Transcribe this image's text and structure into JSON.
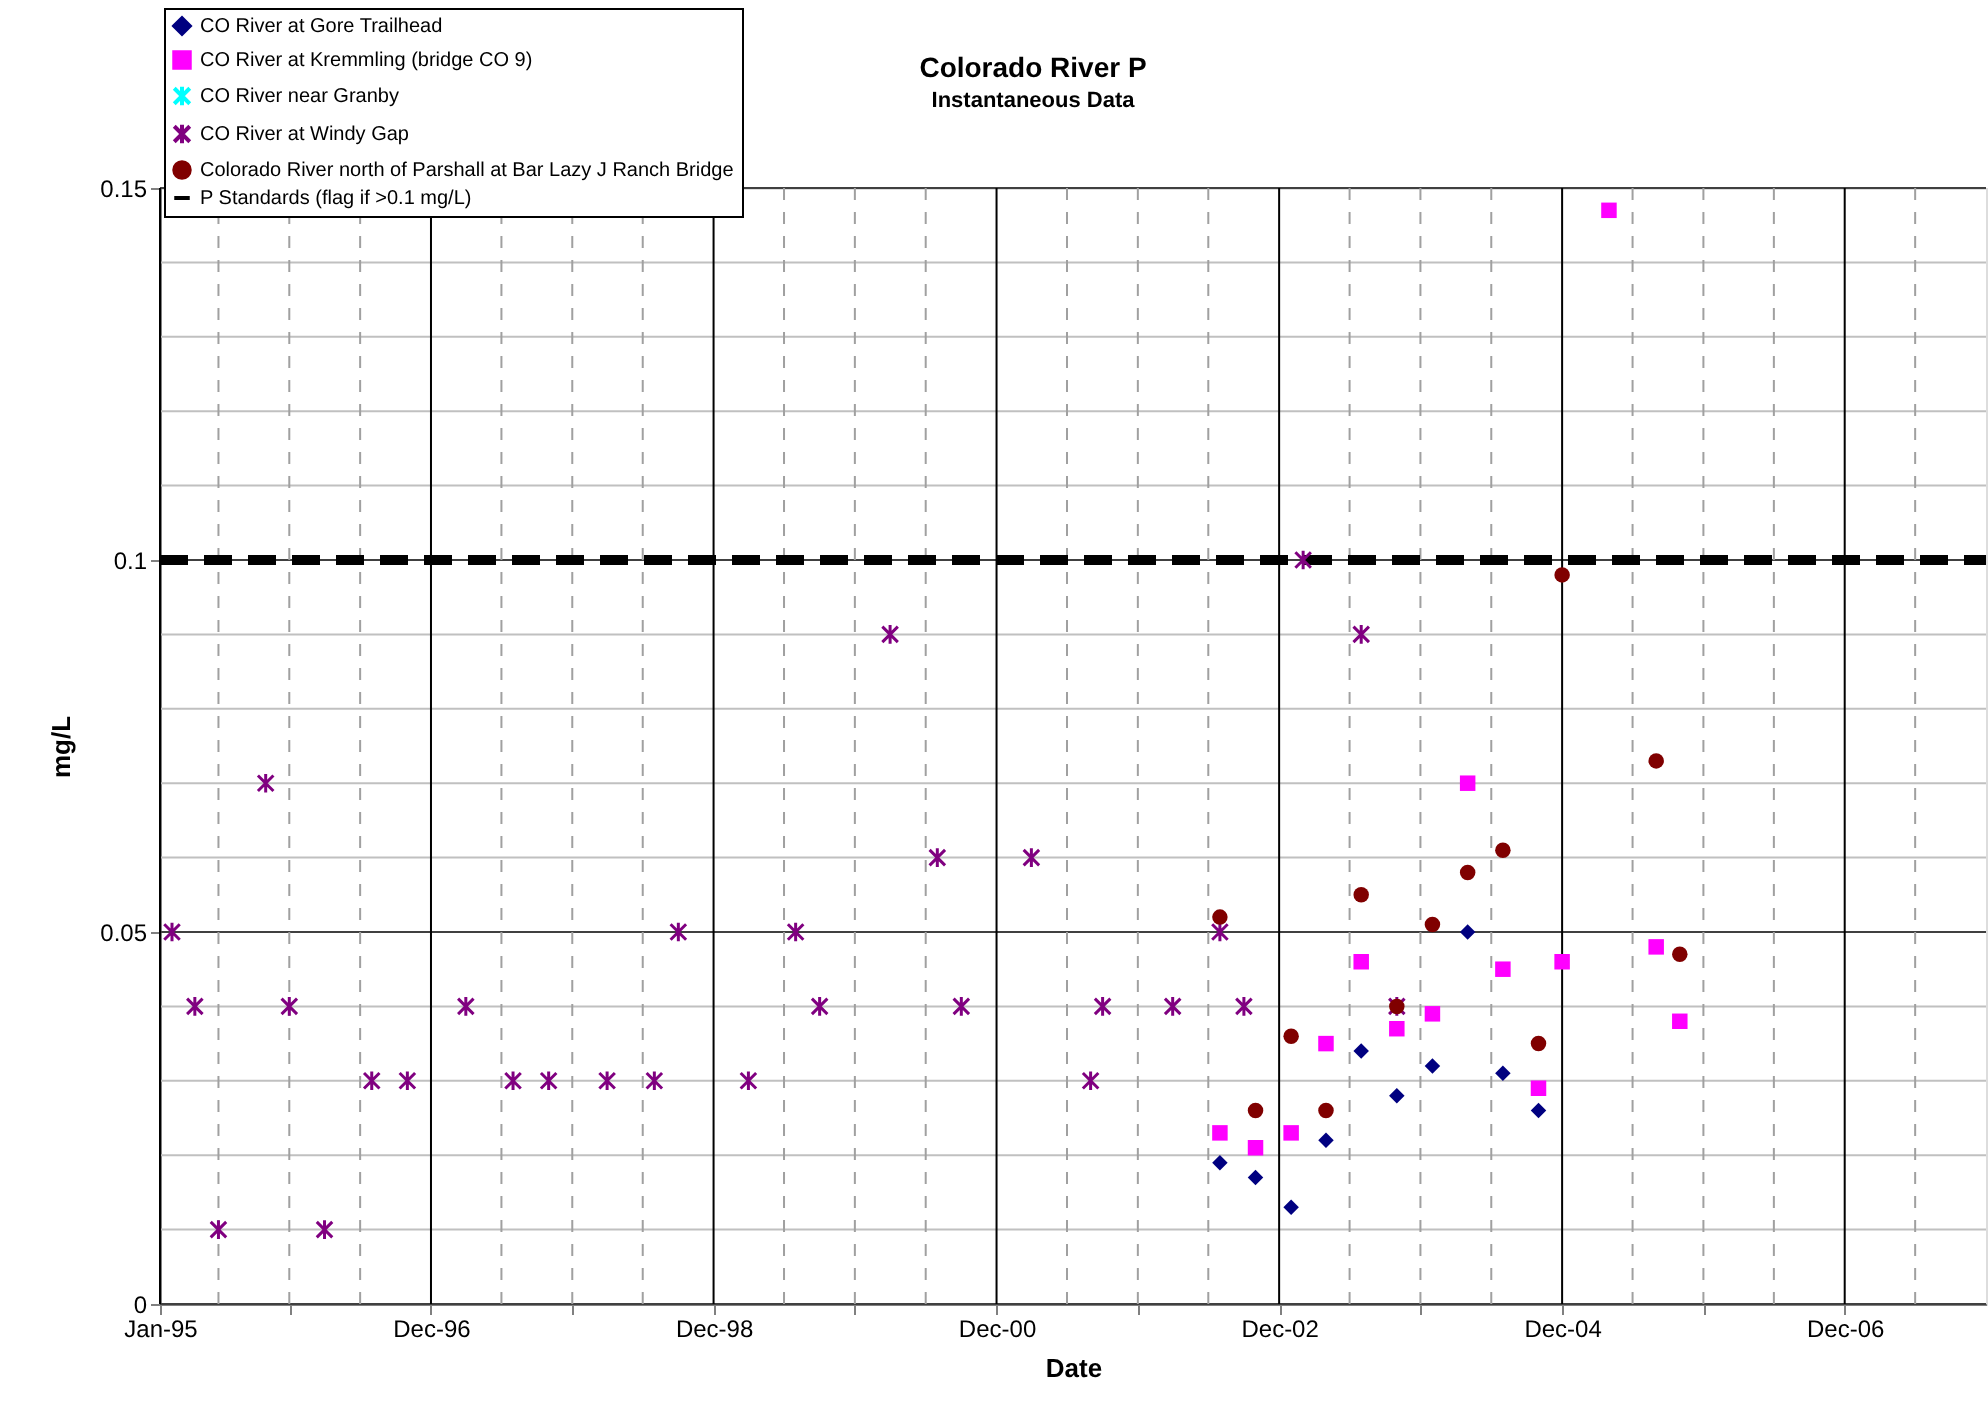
{
  "chart_data": {
    "type": "scatter",
    "title": "Colorado River P",
    "subtitle": "Instantaneous Data",
    "xlabel": "Date",
    "ylabel": "mg/L",
    "xlim": [
      "1995-01-01",
      "2007-12-01"
    ],
    "ylim": [
      0,
      0.15
    ],
    "xticks": [
      {
        "value": "1995-01-01",
        "label": "Jan-95"
      },
      {
        "value": "1995-06-01",
        "label": null
      },
      {
        "value": "1995-12-01",
        "label": null
      },
      {
        "value": "1996-06-01",
        "label": null
      },
      {
        "value": "1996-12-01",
        "label": "Dec-96"
      },
      {
        "value": "1997-06-01",
        "label": null
      },
      {
        "value": "1997-12-01",
        "label": null
      },
      {
        "value": "1998-06-01",
        "label": null
      },
      {
        "value": "1998-12-01",
        "label": "Dec-98"
      },
      {
        "value": "1999-06-01",
        "label": null
      },
      {
        "value": "1999-12-01",
        "label": null
      },
      {
        "value": "2000-06-01",
        "label": null
      },
      {
        "value": "2000-12-01",
        "label": "Dec-00"
      },
      {
        "value": "2001-06-01",
        "label": null
      },
      {
        "value": "2001-12-01",
        "label": null
      },
      {
        "value": "2002-06-01",
        "label": null
      },
      {
        "value": "2002-12-01",
        "label": "Dec-02"
      },
      {
        "value": "2003-06-01",
        "label": null
      },
      {
        "value": "2003-12-01",
        "label": null
      },
      {
        "value": "2004-06-01",
        "label": null
      },
      {
        "value": "2004-12-01",
        "label": "Dec-04"
      },
      {
        "value": "2005-06-01",
        "label": null
      },
      {
        "value": "2005-12-01",
        "label": null
      },
      {
        "value": "2006-06-01",
        "label": null
      },
      {
        "value": "2006-12-01",
        "label": "Dec-06"
      },
      {
        "value": "2007-06-01",
        "label": null
      }
    ],
    "yticks": [
      0,
      {
        "value": 0.01,
        "label": null
      },
      {
        "value": 0.02,
        "label": null
      },
      {
        "value": 0.03,
        "label": null
      },
      {
        "value": 0.04,
        "label": null
      },
      0.05,
      {
        "value": 0.06,
        "label": null
      },
      {
        "value": 0.07,
        "label": null
      },
      {
        "value": 0.08,
        "label": null
      },
      {
        "value": 0.09,
        "label": null
      },
      0.1,
      {
        "value": 0.11,
        "label": null
      },
      {
        "value": 0.12,
        "label": null
      },
      {
        "value": 0.13,
        "label": null
      },
      {
        "value": 0.14,
        "label": null
      },
      0.15
    ],
    "grid": true,
    "legend": "top left",
    "series": [
      {
        "name": "CO River at Gore Trailhead",
        "color": "#000080",
        "marker": "diamond",
        "x": [
          "2002-07",
          "2002-10",
          "2003-01",
          "2003-04",
          "2003-07",
          "2003-10",
          "2004-01",
          "2004-04",
          "2004-07",
          "2004-10"
        ],
        "values": [
          0.019,
          0.017,
          0.013,
          0.022,
          0.034,
          0.028,
          0.032,
          0.05,
          0.031,
          0.026
        ]
      },
      {
        "name": "CO River at Kremmling (bridge CO 9)",
        "color": "#ff00ff",
        "marker": "square",
        "x": [
          "2002-07",
          "2002-10",
          "2003-01",
          "2003-04",
          "2003-07",
          "2003-10",
          "2004-01",
          "2004-04",
          "2004-07",
          "2004-10",
          "2004-12",
          "2005-04",
          "2005-08",
          "2005-10"
        ],
        "values": [
          0.023,
          0.021,
          0.023,
          0.035,
          0.046,
          0.037,
          0.039,
          0.07,
          0.045,
          0.029,
          0.046,
          0.147,
          0.048,
          0.038
        ]
      },
      {
        "name": "CO River near Granby",
        "color": "#00ffff",
        "marker": "cross"
      },
      {
        "name": "CO River at Windy Gap",
        "color": "#800080",
        "marker": "cross",
        "x": [
          "1995-02",
          "1995-04",
          "1995-06",
          "1995-10",
          "1995-12",
          "1996-03",
          "1996-07",
          "1996-10",
          "1997-03",
          "1997-07",
          "1997-10",
          "1998-03",
          "1998-07",
          "1998-09",
          "1999-03",
          "1999-07",
          "1999-09",
          "2000-03",
          "2000-07",
          "2000-09",
          "2001-03",
          "2001-08",
          "2001-09",
          "2002-03",
          "2002-07",
          "2002-09",
          "2003-02",
          "2003-07",
          "2003-10"
        ],
        "values": [
          0.05,
          0.04,
          0.01,
          0.07,
          0.04,
          0.01,
          0.03,
          0.03,
          0.04,
          0.03,
          0.03,
          0.03,
          0.03,
          0.05,
          0.03,
          0.05,
          0.04,
          0.09,
          0.06,
          0.04,
          0.06,
          0.03,
          0.04,
          0.04,
          0.05,
          0.04,
          0.1,
          0.09,
          0.04
        ]
      },
      {
        "name": "Colorado River north of Parshall at Bar Lazy J Ranch Bridge",
        "color": "#800000",
        "marker": "circle",
        "x": [
          "2002-07",
          "2002-10",
          "2003-01",
          "2003-04",
          "2003-07",
          "2003-10",
          "2004-01",
          "2004-04",
          "2004-07",
          "2004-10",
          "2004-12",
          "2005-08",
          "2005-10"
        ],
        "values": [
          0.052,
          0.026,
          0.036,
          0.026,
          0.055,
          0.04,
          0.051,
          0.058,
          0.061,
          0.035,
          0.098,
          0.073,
          0.047
        ]
      },
      {
        "name": "P Standards (flag if >0.1 mg/L)",
        "type": "line",
        "color": "#000000",
        "line_style": "dashed",
        "x": [
          "1995-01",
          "2007-12"
        ],
        "values": [
          0.1,
          0.1
        ]
      }
    ]
  }
}
